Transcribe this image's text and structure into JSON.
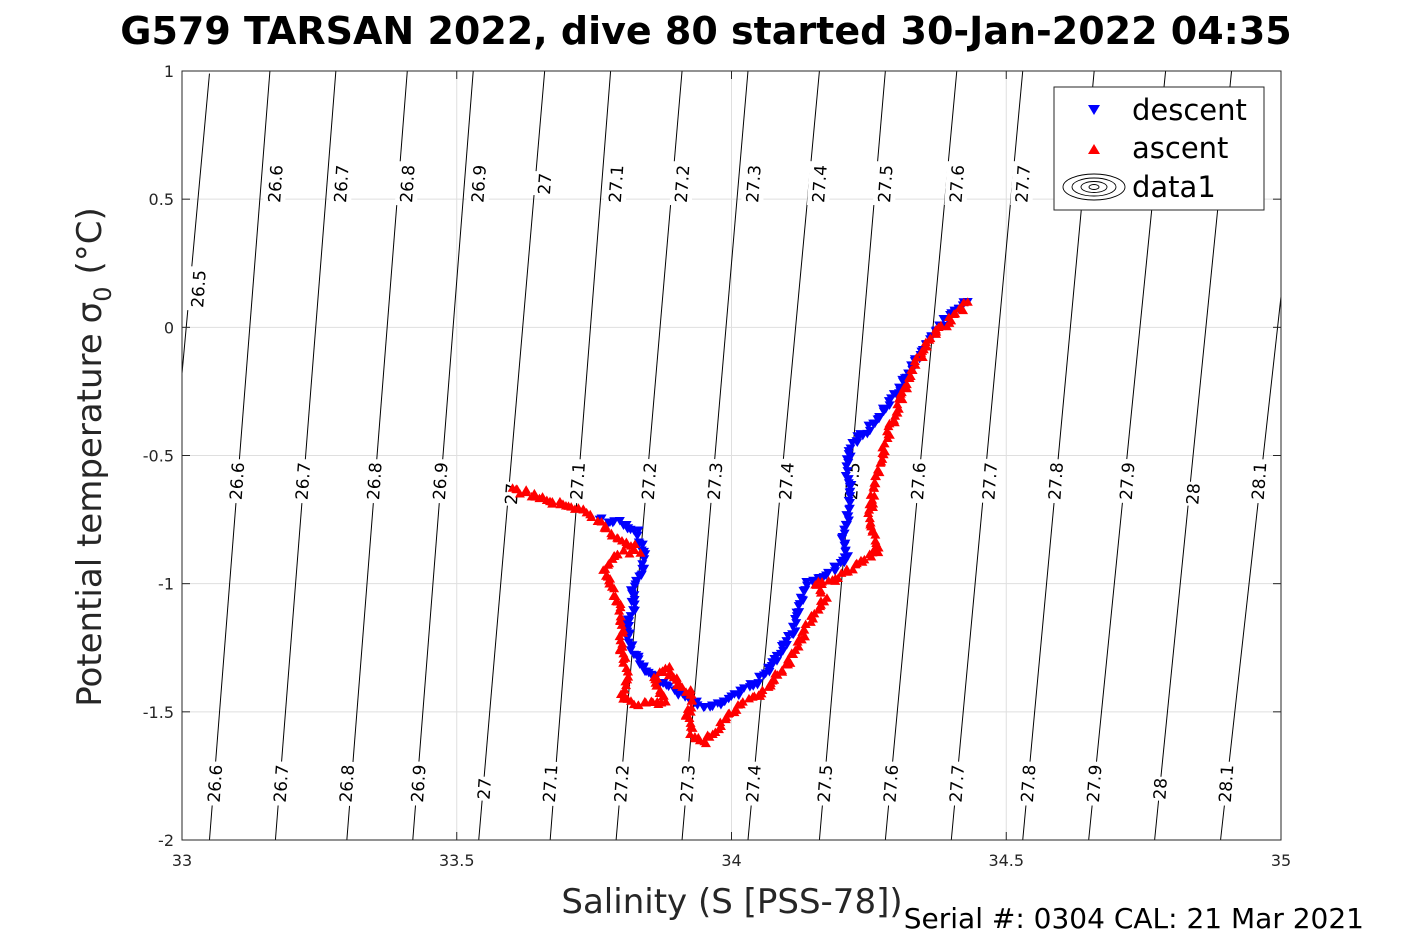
{
  "chart_data": {
    "type": "scatter",
    "title": "G579 TARSAN 2022, dive 80 started 30-Jan-2022 04:35",
    "xlabel": "Salinity (S [PSS-78])",
    "ylabel": "Potential temperature",
    "ylabel_symbol": "σ",
    "ylabel_sub": "0",
    "ylabel_unit": "(°C)",
    "xlim": [
      33,
      35
    ],
    "ylim": [
      -2,
      1
    ],
    "xticks": [
      33,
      33.5,
      34,
      34.5,
      35
    ],
    "xtick_labels": [
      "33",
      "33.5",
      "34",
      "34.5",
      "35"
    ],
    "yticks": [
      -2,
      -1.5,
      -1,
      -0.5,
      0,
      0.5,
      1
    ],
    "ytick_labels": [
      "-2",
      "-1.5",
      "-1",
      "-0.5",
      "0",
      "0.5",
      "1"
    ],
    "grid": true,
    "legend_position": "top-right",
    "legend": [
      {
        "label": "descent",
        "marker": "down-triangle",
        "color": "#0000ff"
      },
      {
        "label": "ascent",
        "marker": "up-triangle",
        "color": "#ff0000"
      },
      {
        "label": "data1",
        "marker": "contour",
        "color": "#000000"
      }
    ],
    "contours": {
      "levels": [
        26.5,
        26.6,
        26.7,
        26.8,
        26.9,
        27.0,
        27.1,
        27.2,
        27.3,
        27.4,
        27.5,
        27.6,
        27.7,
        27.8,
        27.9,
        28.0,
        28.1
      ],
      "lines": [
        {
          "level": 26.5,
          "top": [
            33.05,
            0.99
          ],
          "bottom": [
            33.0,
            -0.18
          ]
        },
        {
          "level": 26.6,
          "top": [
            33.16,
            1.0
          ],
          "bottom": [
            33.05,
            -2.0
          ]
        },
        {
          "level": 26.7,
          "top": [
            33.28,
            1.0
          ],
          "bottom": [
            33.17,
            -2.0
          ]
        },
        {
          "level": 26.8,
          "top": [
            33.41,
            1.0
          ],
          "bottom": [
            33.3,
            -2.0
          ]
        },
        {
          "level": 26.9,
          "top": [
            33.53,
            1.0
          ],
          "bottom": [
            33.42,
            -2.0
          ]
        },
        {
          "level": 27.0,
          "top": [
            33.66,
            1.0
          ],
          "bottom": [
            33.54,
            -2.0
          ]
        },
        {
          "level": 27.1,
          "top": [
            33.78,
            1.0
          ],
          "bottom": [
            33.67,
            -2.0
          ]
        },
        {
          "level": 27.2,
          "top": [
            33.91,
            1.0
          ],
          "bottom": [
            33.79,
            -2.0
          ]
        },
        {
          "level": 27.3,
          "top": [
            34.03,
            1.0
          ],
          "bottom": [
            33.91,
            -2.0
          ]
        },
        {
          "level": 27.4,
          "top": [
            34.16,
            1.0
          ],
          "bottom": [
            34.03,
            -2.0
          ]
        },
        {
          "level": 27.5,
          "top": [
            34.28,
            1.0
          ],
          "bottom": [
            34.16,
            -2.0
          ]
        },
        {
          "level": 27.6,
          "top": [
            34.41,
            1.0
          ],
          "bottom": [
            34.28,
            -2.0
          ]
        },
        {
          "level": 27.7,
          "top": [
            34.53,
            1.0
          ],
          "bottom": [
            34.4,
            -2.0
          ]
        },
        {
          "level": 27.8,
          "top": [
            34.66,
            1.0
          ],
          "bottom": [
            34.53,
            -2.0
          ]
        },
        {
          "level": 27.9,
          "top": [
            34.79,
            1.0
          ],
          "bottom": [
            34.65,
            -2.0
          ]
        },
        {
          "level": 28.0,
          "top": [
            34.91,
            1.0
          ],
          "bottom": [
            34.77,
            -2.0
          ]
        },
        {
          "level": 28.1,
          "top": [
            35.0,
            0.12
          ],
          "bottom": [
            34.89,
            -2.0
          ]
        }
      ],
      "labels": [
        {
          "text": "26.5",
          "s": 33.03,
          "t": 0.15
        },
        {
          "text": "26.6",
          "s": 33.17,
          "t": 0.56
        },
        {
          "text": "26.7",
          "s": 33.29,
          "t": 0.56
        },
        {
          "text": "26.8",
          "s": 33.41,
          "t": 0.56
        },
        {
          "text": "26.9",
          "s": 33.54,
          "t": 0.56
        },
        {
          "text": "27",
          "s": 33.66,
          "t": 0.56
        },
        {
          "text": "27.1",
          "s": 33.79,
          "t": 0.56
        },
        {
          "text": "27.2",
          "s": 33.91,
          "t": 0.56
        },
        {
          "text": "27.3",
          "s": 34.04,
          "t": 0.56
        },
        {
          "text": "27.4",
          "s": 34.16,
          "t": 0.56
        },
        {
          "text": "27.5",
          "s": 34.28,
          "t": 0.56
        },
        {
          "text": "27.6",
          "s": 34.41,
          "t": 0.56
        },
        {
          "text": "27.7",
          "s": 34.53,
          "t": 0.56
        },
        {
          "text": "26.6",
          "s": 33.1,
          "t": -0.6
        },
        {
          "text": "26.7",
          "s": 33.22,
          "t": -0.6
        },
        {
          "text": "26.8",
          "s": 33.35,
          "t": -0.6
        },
        {
          "text": "26.9",
          "s": 33.47,
          "t": -0.6
        },
        {
          "text": "27",
          "s": 33.6,
          "t": -0.65
        },
        {
          "text": "27.1",
          "s": 33.72,
          "t": -0.6
        },
        {
          "text": "27.2",
          "s": 33.85,
          "t": -0.6
        },
        {
          "text": "27.3",
          "s": 33.97,
          "t": -0.6
        },
        {
          "text": "27.4",
          "s": 34.1,
          "t": -0.6
        },
        {
          "text": "27.5",
          "s": 34.22,
          "t": -0.6
        },
        {
          "text": "27.6",
          "s": 34.34,
          "t": -0.6
        },
        {
          "text": "27.7",
          "s": 34.47,
          "t": -0.6
        },
        {
          "text": "27.8",
          "s": 34.59,
          "t": -0.6
        },
        {
          "text": "27.9",
          "s": 34.72,
          "t": -0.6
        },
        {
          "text": "28",
          "s": 34.84,
          "t": -0.65
        },
        {
          "text": "28.1",
          "s": 34.96,
          "t": -0.6
        },
        {
          "text": "26.6",
          "s": 33.06,
          "t": -1.78
        },
        {
          "text": "26.7",
          "s": 33.18,
          "t": -1.78
        },
        {
          "text": "26.8",
          "s": 33.3,
          "t": -1.78
        },
        {
          "text": "26.9",
          "s": 33.43,
          "t": -1.78
        },
        {
          "text": "27",
          "s": 33.55,
          "t": -1.8
        },
        {
          "text": "27.1",
          "s": 33.67,
          "t": -1.78
        },
        {
          "text": "27.2",
          "s": 33.8,
          "t": -1.78
        },
        {
          "text": "27.3",
          "s": 33.92,
          "t": -1.78
        },
        {
          "text": "27.4",
          "s": 34.04,
          "t": -1.78
        },
        {
          "text": "27.5",
          "s": 34.17,
          "t": -1.78
        },
        {
          "text": "27.6",
          "s": 34.29,
          "t": -1.78
        },
        {
          "text": "27.7",
          "s": 34.41,
          "t": -1.78
        },
        {
          "text": "27.8",
          "s": 34.54,
          "t": -1.78
        },
        {
          "text": "27.9",
          "s": 34.66,
          "t": -1.78
        },
        {
          "text": "28",
          "s": 34.78,
          "t": -1.8
        },
        {
          "text": "28.1",
          "s": 34.9,
          "t": -1.78
        }
      ]
    },
    "series": [
      {
        "name": "descent",
        "color": "#0000ff",
        "marker": "down-triangle",
        "path": [
          [
            34.43,
            0.1
          ],
          [
            34.4,
            0.05
          ],
          [
            34.37,
            -0.02
          ],
          [
            34.34,
            -0.12
          ],
          [
            34.31,
            -0.22
          ],
          [
            34.28,
            -0.32
          ],
          [
            34.25,
            -0.4
          ],
          [
            34.22,
            -0.46
          ],
          [
            34.21,
            -0.55
          ],
          [
            34.22,
            -0.65
          ],
          [
            34.21,
            -0.75
          ],
          [
            34.2,
            -0.82
          ],
          [
            34.21,
            -0.9
          ],
          [
            34.18,
            -0.96
          ],
          [
            34.14,
            -1.0
          ],
          [
            34.13,
            -1.05
          ],
          [
            34.12,
            -1.12
          ],
          [
            34.11,
            -1.2
          ],
          [
            34.09,
            -1.26
          ],
          [
            34.07,
            -1.33
          ],
          [
            34.05,
            -1.38
          ],
          [
            34.02,
            -1.42
          ],
          [
            33.99,
            -1.46
          ],
          [
            33.96,
            -1.49
          ],
          [
            33.93,
            -1.46
          ],
          [
            33.9,
            -1.42
          ],
          [
            33.87,
            -1.38
          ],
          [
            33.84,
            -1.33
          ],
          [
            33.82,
            -1.26
          ],
          [
            33.81,
            -1.18
          ],
          [
            33.82,
            -1.1
          ],
          [
            33.82,
            -1.02
          ],
          [
            33.84,
            -0.96
          ],
          [
            33.84,
            -0.88
          ],
          [
            33.83,
            -0.8
          ],
          [
            33.79,
            -0.76
          ],
          [
            33.76,
            -0.75
          ]
        ]
      },
      {
        "name": "ascent",
        "color": "#ff0000",
        "marker": "up-triangle",
        "path": [
          [
            33.6,
            -0.63
          ],
          [
            33.65,
            -0.66
          ],
          [
            33.7,
            -0.7
          ],
          [
            33.74,
            -0.72
          ],
          [
            33.78,
            -0.8
          ],
          [
            33.81,
            -0.84
          ],
          [
            33.83,
            -0.87
          ],
          [
            33.79,
            -0.88
          ],
          [
            33.77,
            -0.95
          ],
          [
            33.79,
            -1.05
          ],
          [
            33.8,
            -1.15
          ],
          [
            33.8,
            -1.25
          ],
          [
            33.81,
            -1.35
          ],
          [
            33.8,
            -1.45
          ],
          [
            33.84,
            -1.47
          ],
          [
            33.88,
            -1.46
          ],
          [
            33.86,
            -1.38
          ],
          [
            33.88,
            -1.32
          ],
          [
            33.9,
            -1.38
          ],
          [
            33.93,
            -1.44
          ],
          [
            33.92,
            -1.52
          ],
          [
            33.93,
            -1.59
          ],
          [
            33.95,
            -1.62
          ],
          [
            33.97,
            -1.57
          ],
          [
            33.99,
            -1.52
          ],
          [
            34.02,
            -1.47
          ],
          [
            34.05,
            -1.43
          ],
          [
            34.08,
            -1.37
          ],
          [
            34.11,
            -1.28
          ],
          [
            34.13,
            -1.2
          ],
          [
            34.15,
            -1.12
          ],
          [
            34.17,
            -1.05
          ],
          [
            34.15,
            -1.0
          ],
          [
            34.18,
            -0.99
          ],
          [
            34.22,
            -0.94
          ],
          [
            34.27,
            -0.87
          ],
          [
            34.25,
            -0.78
          ],
          [
            34.26,
            -0.6
          ],
          [
            34.28,
            -0.45
          ],
          [
            34.3,
            -0.32
          ],
          [
            34.33,
            -0.17
          ],
          [
            34.36,
            -0.05
          ],
          [
            34.4,
            0.04
          ],
          [
            34.43,
            0.1
          ]
        ]
      }
    ]
  },
  "footer": {
    "serial": "Serial #: 0304  CAL: 21 Mar 2021"
  }
}
